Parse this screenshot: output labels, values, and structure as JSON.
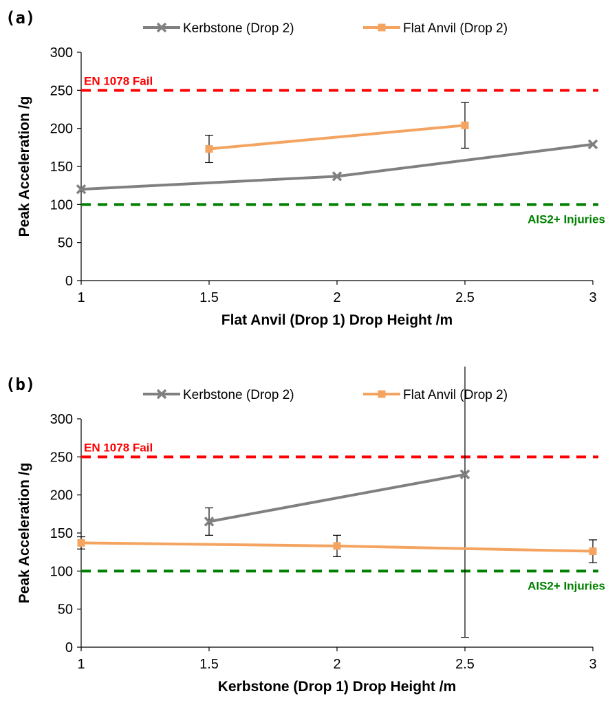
{
  "chart_data": [
    {
      "type": "line",
      "panel_label": "(a)",
      "xlabel": "Flat Anvil (Drop 1) Drop Height /m",
      "ylabel": "Peak Acceleration /g",
      "xlim": [
        1,
        3
      ],
      "ylim": [
        0,
        300
      ],
      "xticks": [
        "1",
        "1.5",
        "2",
        "2.5",
        "3"
      ],
      "yticks": [
        "0",
        "50",
        "100",
        "150",
        "200",
        "250",
        "300"
      ],
      "grid": false,
      "legend_position": "top",
      "series": [
        {
          "name": "Kerbstone (Drop 2)",
          "color": "#808080",
          "marker": "x",
          "x": [
            1,
            2,
            3
          ],
          "y": [
            120,
            137,
            179
          ],
          "err": [
            null,
            null,
            null
          ]
        },
        {
          "name": "Flat Anvil (Drop 2)",
          "color": "#f4a460",
          "marker": "square",
          "x": [
            1.5,
            2.5
          ],
          "y": [
            173,
            204
          ],
          "err": [
            18,
            30
          ]
        }
      ],
      "reference_lines": [
        {
          "label": "EN 1078 Fail",
          "value": 250,
          "color": "#ff0000",
          "label_side": "left"
        },
        {
          "label": "AIS2+ Injuries",
          "value": 100,
          "color": "#008000",
          "label_side": "right"
        }
      ]
    },
    {
      "type": "line",
      "panel_label": "(b)",
      "xlabel": "Kerbstone (Drop 1) Drop Height /m",
      "ylabel": "Peak Acceleration /g",
      "xlim": [
        1,
        3
      ],
      "ylim": [
        0,
        300
      ],
      "xticks": [
        "1",
        "1.5",
        "2",
        "2.5",
        "3"
      ],
      "yticks": [
        "0",
        "50",
        "100",
        "150",
        "200",
        "250",
        "300"
      ],
      "grid": false,
      "legend_position": "top",
      "series": [
        {
          "name": "Kerbstone (Drop 2)",
          "color": "#808080",
          "marker": "x",
          "x": [
            1.5,
            2.5
          ],
          "y": [
            165,
            227
          ],
          "err": [
            18,
            214
          ]
        },
        {
          "name": "Flat Anvil (Drop 2)",
          "color": "#f4a460",
          "marker": "square",
          "x": [
            1,
            2,
            3
          ],
          "y": [
            137,
            133,
            126
          ],
          "err": [
            8,
            14,
            15
          ]
        }
      ],
      "reference_lines": [
        {
          "label": "EN 1078 Fail",
          "value": 250,
          "color": "#ff0000",
          "label_side": "left"
        },
        {
          "label": "AIS2+ Injuries",
          "value": 100,
          "color": "#008000",
          "label_side": "right"
        }
      ]
    }
  ]
}
